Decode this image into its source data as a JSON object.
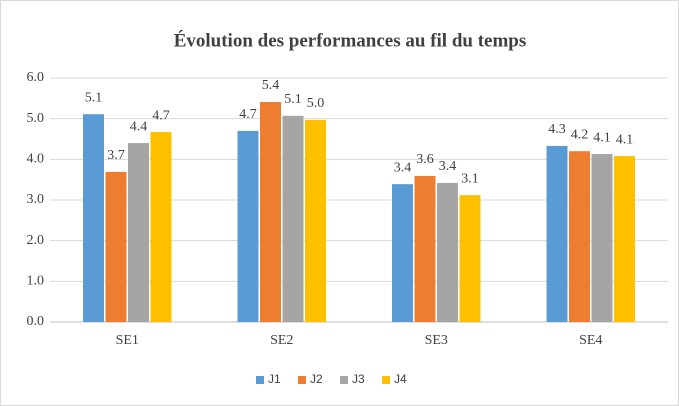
{
  "chart_data": {
    "type": "bar",
    "title": "Évolution des performances au fil du temps",
    "categories": [
      "SE1",
      "SE2",
      "SE3",
      "SE4"
    ],
    "series": [
      {
        "name": "J1",
        "color": "#5b9bd5",
        "values": [
          5.11,
          4.7,
          3.39,
          4.33
        ],
        "value_labels": [
          "5.1",
          "4.7",
          "3.4",
          "4.3"
        ]
      },
      {
        "name": "J2",
        "color": "#ed7d31",
        "values": [
          3.69,
          5.41,
          3.59,
          4.2
        ],
        "value_labels": [
          "3.7",
          "5.4",
          "3.6",
          "4.2"
        ]
      },
      {
        "name": "J3",
        "color": "#a5a5a5",
        "values": [
          4.4,
          5.07,
          3.42,
          4.13
        ],
        "value_labels": [
          "4.4",
          "5.1",
          "3.4",
          "4.1"
        ]
      },
      {
        "name": "J4",
        "color": "#ffc000",
        "values": [
          4.67,
          4.97,
          3.12,
          4.08
        ],
        "value_labels": [
          "4.7",
          "5.0",
          "3.1",
          "4.1"
        ]
      }
    ],
    "ylim": [
      0,
      6
    ],
    "yticks": [
      {
        "value": 0,
        "label": "0.0"
      },
      {
        "value": 1,
        "label": "1.0"
      },
      {
        "value": 2,
        "label": "2.0"
      },
      {
        "value": 3,
        "label": "3.0"
      },
      {
        "value": 4,
        "label": "4.0"
      },
      {
        "value": 5,
        "label": "5.0"
      },
      {
        "value": 6,
        "label": "6.0"
      }
    ],
    "grid": true,
    "legend": "bottom"
  }
}
